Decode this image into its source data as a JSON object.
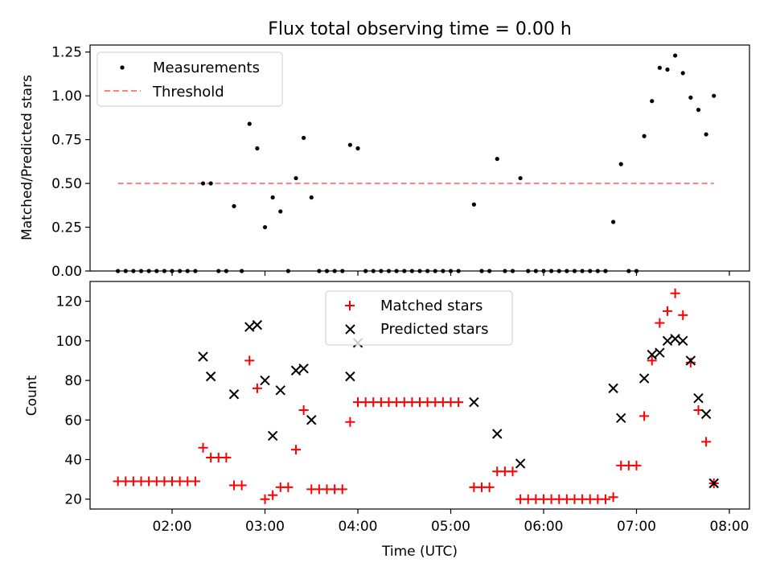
{
  "figure_title": "Flux total observing time = 0.00 h",
  "x_axis": {
    "label": "Time (UTC)",
    "ticks": [
      "02:00",
      "03:00",
      "04:00",
      "05:00",
      "06:00",
      "07:00",
      "08:00"
    ]
  },
  "chart_data": [
    {
      "type": "scatter",
      "title": "Flux total observing time = 0.00 h",
      "xlabel": "",
      "ylabel": "Matched/Predicted stars",
      "xlim": [
        "01:07",
        "08:13"
      ],
      "ylim": [
        0,
        1.29
      ],
      "yticks": [
        "0.00",
        "0.25",
        "0.50",
        "0.75",
        "1.00",
        "1.25"
      ],
      "legend": {
        "position": "top-left",
        "entries": [
          "Measurements",
          "Threshold"
        ]
      },
      "grid": false,
      "series": [
        {
          "name": "Measurements",
          "marker": "dot",
          "color": "#000000",
          "points": [
            [
              "01:25",
              0
            ],
            [
              "01:30",
              0
            ],
            [
              "01:35",
              0
            ],
            [
              "01:40",
              0
            ],
            [
              "01:45",
              0
            ],
            [
              "01:50",
              0
            ],
            [
              "01:55",
              0
            ],
            [
              "02:00",
              0
            ],
            [
              "02:05",
              0
            ],
            [
              "02:10",
              0
            ],
            [
              "02:15",
              0
            ],
            [
              "02:20",
              0.5
            ],
            [
              "02:25",
              0.5
            ],
            [
              "02:30",
              0
            ],
            [
              "02:35",
              0
            ],
            [
              "02:40",
              0.37
            ],
            [
              "02:45",
              0
            ],
            [
              "02:50",
              0.84
            ],
            [
              "02:55",
              0.7
            ],
            [
              "03:00",
              0.25
            ],
            [
              "03:05",
              0.42
            ],
            [
              "03:10",
              0.34
            ],
            [
              "03:15",
              0
            ],
            [
              "03:20",
              0.53
            ],
            [
              "03:25",
              0.76
            ],
            [
              "03:30",
              0.42
            ],
            [
              "03:35",
              0
            ],
            [
              "03:40",
              0
            ],
            [
              "03:45",
              0
            ],
            [
              "03:50",
              0
            ],
            [
              "03:55",
              0.72
            ],
            [
              "04:00",
              0.7
            ],
            [
              "04:05",
              0
            ],
            [
              "04:10",
              0
            ],
            [
              "04:15",
              0
            ],
            [
              "04:20",
              0
            ],
            [
              "04:25",
              0
            ],
            [
              "04:30",
              0
            ],
            [
              "04:35",
              0
            ],
            [
              "04:40",
              0
            ],
            [
              "04:45",
              0
            ],
            [
              "04:50",
              0
            ],
            [
              "04:55",
              0
            ],
            [
              "05:00",
              0
            ],
            [
              "05:05",
              0
            ],
            [
              "05:15",
              0.38
            ],
            [
              "05:20",
              0
            ],
            [
              "05:25",
              0
            ],
            [
              "05:30",
              0.64
            ],
            [
              "05:35",
              0
            ],
            [
              "05:40",
              0
            ],
            [
              "05:45",
              0.53
            ],
            [
              "05:50",
              0
            ],
            [
              "05:55",
              0
            ],
            [
              "06:00",
              0
            ],
            [
              "06:05",
              0
            ],
            [
              "06:10",
              0
            ],
            [
              "06:15",
              0
            ],
            [
              "06:20",
              0
            ],
            [
              "06:25",
              0
            ],
            [
              "06:30",
              0
            ],
            [
              "06:35",
              0
            ],
            [
              "06:40",
              0
            ],
            [
              "06:45",
              0.28
            ],
            [
              "06:50",
              0.61
            ],
            [
              "06:55",
              0
            ],
            [
              "07:00",
              0
            ],
            [
              "07:05",
              0.77
            ],
            [
              "07:10",
              0.97
            ],
            [
              "07:15",
              1.16
            ],
            [
              "07:20",
              1.15
            ],
            [
              "07:25",
              1.23
            ],
            [
              "07:30",
              1.13
            ],
            [
              "07:35",
              0.99
            ],
            [
              "07:40",
              0.92
            ],
            [
              "07:45",
              0.78
            ],
            [
              "07:50",
              1.0
            ]
          ]
        },
        {
          "name": "Threshold",
          "style": "dashed",
          "color": "#ff7f7f",
          "points": [
            [
              "01:25",
              0.5
            ],
            [
              "07:50",
              0.5
            ]
          ]
        }
      ]
    },
    {
      "type": "scatter",
      "xlabel": "Time (UTC)",
      "ylabel": "Count",
      "xlim": [
        "01:07",
        "08:13"
      ],
      "ylim": [
        15,
        130
      ],
      "yticks": [
        "20",
        "40",
        "60",
        "80",
        "100",
        "120"
      ],
      "legend": {
        "position": "top-center",
        "entries": [
          "Matched stars",
          "Predicted stars"
        ]
      },
      "grid": false,
      "series": [
        {
          "name": "Matched stars",
          "marker": "+",
          "color": "#ff0000",
          "points": [
            [
              "01:25",
              29
            ],
            [
              "01:30",
              29
            ],
            [
              "01:35",
              29
            ],
            [
              "01:40",
              29
            ],
            [
              "01:45",
              29
            ],
            [
              "01:50",
              29
            ],
            [
              "01:55",
              29
            ],
            [
              "02:00",
              29
            ],
            [
              "02:05",
              29
            ],
            [
              "02:10",
              29
            ],
            [
              "02:15",
              29
            ],
            [
              "02:20",
              46
            ],
            [
              "02:25",
              41
            ],
            [
              "02:30",
              41
            ],
            [
              "02:35",
              41
            ],
            [
              "02:40",
              27
            ],
            [
              "02:45",
              27
            ],
            [
              "02:50",
              90
            ],
            [
              "02:55",
              76
            ],
            [
              "03:00",
              20
            ],
            [
              "03:05",
              22
            ],
            [
              "03:10",
              26
            ],
            [
              "03:15",
              26
            ],
            [
              "03:20",
              45
            ],
            [
              "03:25",
              65
            ],
            [
              "03:30",
              25
            ],
            [
              "03:35",
              25
            ],
            [
              "03:40",
              25
            ],
            [
              "03:45",
              25
            ],
            [
              "03:50",
              25
            ],
            [
              "03:55",
              59
            ],
            [
              "04:00",
              69
            ],
            [
              "04:05",
              69
            ],
            [
              "04:10",
              69
            ],
            [
              "04:15",
              69
            ],
            [
              "04:20",
              69
            ],
            [
              "04:25",
              69
            ],
            [
              "04:30",
              69
            ],
            [
              "04:35",
              69
            ],
            [
              "04:40",
              69
            ],
            [
              "04:45",
              69
            ],
            [
              "04:50",
              69
            ],
            [
              "04:55",
              69
            ],
            [
              "05:00",
              69
            ],
            [
              "05:05",
              69
            ],
            [
              "05:15",
              26
            ],
            [
              "05:20",
              26
            ],
            [
              "05:25",
              26
            ],
            [
              "05:30",
              34
            ],
            [
              "05:35",
              34
            ],
            [
              "05:40",
              34
            ],
            [
              "05:45",
              20
            ],
            [
              "05:50",
              20
            ],
            [
              "05:55",
              20
            ],
            [
              "06:00",
              20
            ],
            [
              "06:05",
              20
            ],
            [
              "06:10",
              20
            ],
            [
              "06:15",
              20
            ],
            [
              "06:20",
              20
            ],
            [
              "06:25",
              20
            ],
            [
              "06:30",
              20
            ],
            [
              "06:35",
              20
            ],
            [
              "06:40",
              20
            ],
            [
              "06:45",
              21
            ],
            [
              "06:50",
              37
            ],
            [
              "06:55",
              37
            ],
            [
              "07:00",
              37
            ],
            [
              "07:05",
              62
            ],
            [
              "07:10",
              90
            ],
            [
              "07:15",
              109
            ],
            [
              "07:20",
              115
            ],
            [
              "07:25",
              124
            ],
            [
              "07:30",
              113
            ],
            [
              "07:35",
              89
            ],
            [
              "07:40",
              65
            ],
            [
              "07:45",
              49
            ],
            [
              "07:50",
              28
            ]
          ]
        },
        {
          "name": "Predicted stars",
          "marker": "x",
          "color": "#000000",
          "points": [
            [
              "02:20",
              92
            ],
            [
              "02:25",
              82
            ],
            [
              "02:40",
              73
            ],
            [
              "02:50",
              107
            ],
            [
              "02:55",
              108
            ],
            [
              "03:00",
              80
            ],
            [
              "03:05",
              52
            ],
            [
              "03:10",
              75
            ],
            [
              "03:20",
              85
            ],
            [
              "03:25",
              86
            ],
            [
              "03:30",
              60
            ],
            [
              "03:55",
              82
            ],
            [
              "04:00",
              99
            ],
            [
              "05:15",
              69
            ],
            [
              "05:30",
              53
            ],
            [
              "05:45",
              38
            ],
            [
              "06:45",
              76
            ],
            [
              "06:50",
              61
            ],
            [
              "07:05",
              81
            ],
            [
              "07:10",
              93
            ],
            [
              "07:15",
              94
            ],
            [
              "07:20",
              100
            ],
            [
              "07:25",
              101
            ],
            [
              "07:30",
              100
            ],
            [
              "07:35",
              90
            ],
            [
              "07:40",
              71
            ],
            [
              "07:45",
              63
            ],
            [
              "07:50",
              28
            ]
          ]
        }
      ]
    }
  ]
}
